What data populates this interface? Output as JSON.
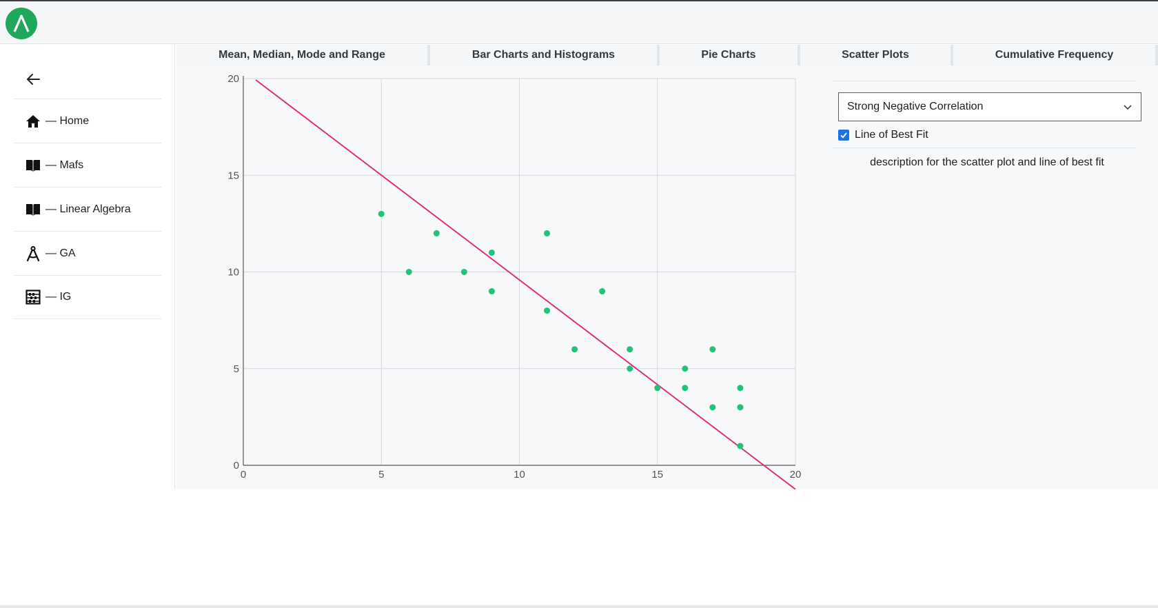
{
  "app": {
    "logo_glyph": "Λ",
    "accent": "#1fa85d"
  },
  "sidebar": {
    "back_icon": "arrow-left-icon",
    "items": [
      {
        "label": "— Home",
        "icon": "home-icon"
      },
      {
        "label": "— Mafs",
        "icon": "book-icon"
      },
      {
        "label": "— Linear Algebra",
        "icon": "book-icon"
      },
      {
        "label": "— GA",
        "icon": "compass-icon"
      },
      {
        "label": "— IG",
        "icon": "abacus-icon"
      }
    ]
  },
  "tabs": [
    {
      "label": "Mean, Median, Mode and Range"
    },
    {
      "label": "Bar Charts and Histograms"
    },
    {
      "label": "Pie Charts"
    },
    {
      "label": "Scatter Plots",
      "active": true
    },
    {
      "label": "Cumulative Frequency"
    }
  ],
  "panel": {
    "select_value": "Strong Negative Correlation",
    "checkbox_label": "Line of Best Fit",
    "checkbox_checked": true,
    "description": "description for the scatter plot and line of best fit"
  },
  "chart_data": {
    "type": "scatter",
    "title": "",
    "xlabel": "",
    "ylabel": "",
    "xlim": [
      0,
      20
    ],
    "ylim": [
      0,
      20
    ],
    "xticks": [
      0,
      5,
      10,
      15,
      20
    ],
    "yticks": [
      0,
      5,
      10,
      15,
      20
    ],
    "grid": true,
    "point_color": "#21c37a",
    "line_color": "#e0307a",
    "points": [
      [
        5,
        13
      ],
      [
        6,
        10
      ],
      [
        7,
        12
      ],
      [
        8,
        10
      ],
      [
        9,
        11
      ],
      [
        9,
        9
      ],
      [
        11,
        12
      ],
      [
        11,
        8
      ],
      [
        12,
        6
      ],
      [
        13,
        9
      ],
      [
        14,
        6
      ],
      [
        14,
        5
      ],
      [
        15,
        4
      ],
      [
        16,
        5
      ],
      [
        16,
        4
      ],
      [
        17,
        6
      ],
      [
        17,
        3
      ],
      [
        18,
        4
      ],
      [
        18,
        3
      ],
      [
        18,
        1
      ]
    ],
    "best_fit": {
      "slope": -1.083,
      "intercept": 20.42
    }
  }
}
